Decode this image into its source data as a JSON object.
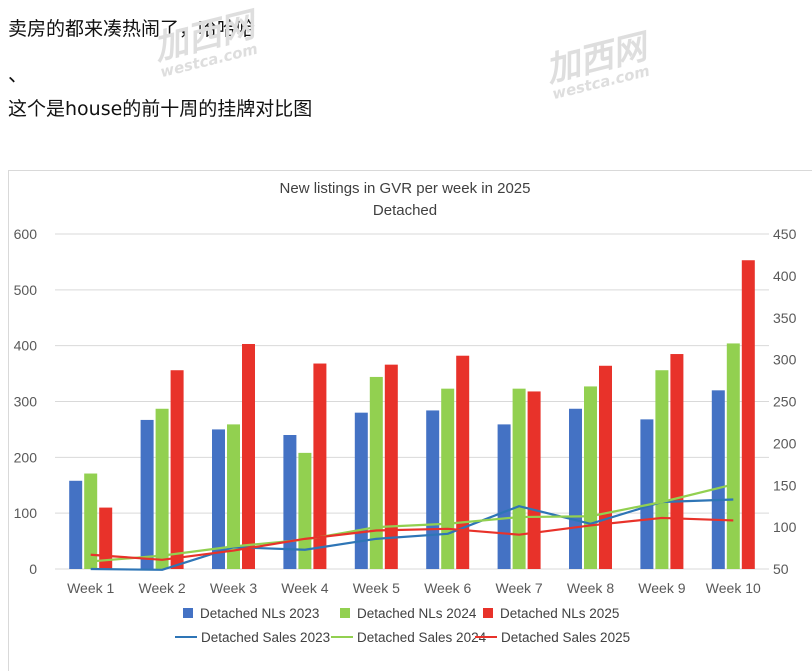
{
  "post": {
    "line1": "卖房的都来凑热闹了，哈哈哈",
    "line2": "、",
    "line3": "这个是house的前十周的挂牌对比图"
  },
  "watermark": {
    "logo": "加西网",
    "site": "westca.com"
  },
  "chart_data": {
    "type": "bar+line",
    "title": "New listings in GVR per week in 2025",
    "subtitle": "Detached",
    "categories": [
      "Week 1",
      "Week 2",
      "Week 3",
      "Week 4",
      "Week 5",
      "Week 6",
      "Week 7",
      "Week 8",
      "Week 9",
      "Week 10"
    ],
    "y_left": {
      "ticks": [
        0,
        100,
        200,
        300,
        400,
        500,
        600
      ],
      "range": [
        0,
        600
      ]
    },
    "y_right": {
      "ticks": [
        50,
        100,
        150,
        200,
        250,
        300,
        350,
        400,
        450
      ],
      "range": [
        50,
        450
      ]
    },
    "bar_series": [
      {
        "name": "Detached NLs 2023",
        "color": "#4472c4",
        "values": [
          158,
          267,
          250,
          240,
          280,
          284,
          259,
          287,
          268,
          320
        ]
      },
      {
        "name": "Detached NLs 2024",
        "color": "#92d050",
        "values": [
          171,
          287,
          259,
          208,
          344,
          323,
          323,
          327,
          356,
          404
        ]
      },
      {
        "name": "Detached NLs 2025",
        "color": "#e8322a",
        "values": [
          110,
          356,
          403,
          368,
          366,
          382,
          318,
          364,
          385,
          553
        ]
      }
    ],
    "line_series": [
      {
        "name": "Detached Sales 2023",
        "color": "#2e75b6",
        "axis": "right",
        "values": [
          50,
          49,
          76,
          73,
          86,
          92,
          125,
          104,
          130,
          133
        ]
      },
      {
        "name": "Detached Sales 2024",
        "color": "#92d050",
        "axis": "right",
        "values": [
          59,
          66,
          77,
          85,
          100,
          104,
          112,
          113,
          130,
          151
        ]
      },
      {
        "name": "Detached Sales 2025",
        "color": "#e8322a",
        "axis": "right",
        "values": [
          67,
          61,
          72,
          86,
          96,
          98,
          91,
          102,
          111,
          108
        ]
      }
    ],
    "legend_position": "bottom",
    "grid": true
  }
}
